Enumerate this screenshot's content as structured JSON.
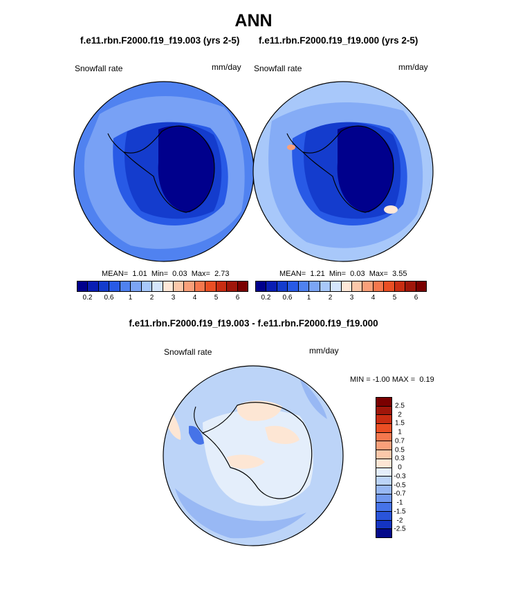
{
  "title": "ANN",
  "colors": {
    "abs_levels": [
      "#00008c",
      "#0a1eb4",
      "#143ccd",
      "#285ae6",
      "#5082f0",
      "#7ca5f5",
      "#a8c8fa",
      "#d5e6fc",
      "#ffe8d8",
      "#fcc8aa",
      "#f9a07a",
      "#f5784e",
      "#ea4f24",
      "#c92d12",
      "#a0160a",
      "#7a0000"
    ],
    "diff_levels_top_to_bottom": [
      "#7a0000",
      "#a0160a",
      "#c92d12",
      "#ea4f24",
      "#f5784e",
      "#f9a07a",
      "#fcc8aa",
      "#fde6d4",
      "#e4eefb",
      "#bcd4f8",
      "#98b8f4",
      "#7198ef",
      "#4673e8",
      "#2a54da",
      "#1434c2",
      "#040a8a"
    ]
  },
  "chart_data": [
    {
      "type": "heatmap",
      "projection": "south-polar-stereographic",
      "case_title": "f.e11.rbn.F2000.f19_f19.003 (yrs 2-5)",
      "variable_label": "Snowfall rate",
      "units": "mm/day",
      "stats": {
        "mean_label": "MEAN=",
        "mean": "1.01",
        "min_label": "Min=",
        "min": "0.03",
        "max_label": "Max=",
        "max": "2.73"
      },
      "colorbar_ticks": [
        "0.2",
        "0.6",
        "1",
        "2",
        "3",
        "4",
        "5",
        "6"
      ]
    },
    {
      "type": "heatmap",
      "projection": "south-polar-stereographic",
      "case_title": "f.e11.rbn.F2000.f19_f19.000 (yrs 2-5)",
      "variable_label": "Snowfall rate",
      "units": "mm/day",
      "stats": {
        "mean_label": "MEAN=",
        "mean": "1.21",
        "min_label": "Min=",
        "min": "0.03",
        "max_label": "Max=",
        "max": "3.55"
      },
      "colorbar_ticks": [
        "0.2",
        "0.6",
        "1",
        "2",
        "3",
        "4",
        "5",
        "6"
      ]
    },
    {
      "type": "heatmap",
      "projection": "south-polar-stereographic",
      "case_title": "f.e11.rbn.F2000.f19_f19.003 - f.e11.rbn.F2000.f19_f19.000",
      "variable_label": "Snowfall rate",
      "units": "mm/day",
      "stats": {
        "min_label": "MIN =",
        "min": "-1.00",
        "max_label": "MAX =",
        "max": "0.19"
      },
      "colorbar_ticks": [
        "2.5",
        "2",
        "1.5",
        "1",
        "0.7",
        "0.5",
        "0.3",
        "0",
        "-0.3",
        "-0.5",
        "-0.7",
        "-1",
        "-1.5",
        "-2",
        "-2.5"
      ]
    }
  ]
}
